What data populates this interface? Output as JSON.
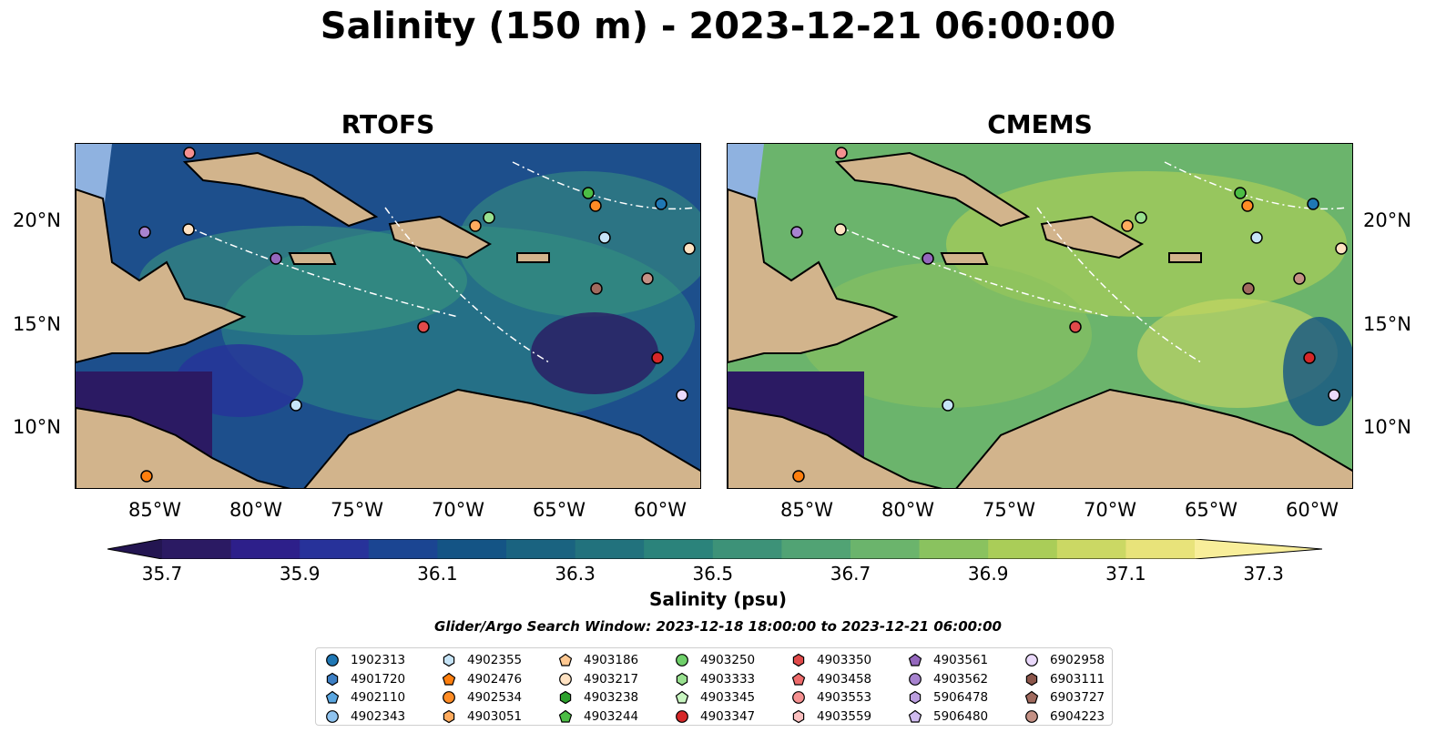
{
  "title": "Salinity (150 m) - 2023-12-21 06:00:00",
  "panels": [
    {
      "id": "rtofs",
      "title": "RTOFS"
    },
    {
      "id": "cmems",
      "title": "CMEMS"
    }
  ],
  "lon_ticks": [
    "85°W",
    "80°W",
    "75°W",
    "70°W",
    "65°W",
    "60°W"
  ],
  "lat_ticks": [
    "20°N",
    "15°N",
    "10°N"
  ],
  "colorbar": {
    "label": "Salinity (psu)",
    "ticks": [
      "35.7",
      "35.9",
      "36.1",
      "36.3",
      "36.5",
      "36.7",
      "36.9",
      "37.1",
      "37.3"
    ],
    "colors": [
      "#2b1a63",
      "#2d1f8a",
      "#27329a",
      "#1b4592",
      "#145485",
      "#1a6380",
      "#22727d",
      "#2b837b",
      "#3d9278",
      "#51a374",
      "#6bb46c",
      "#8ac25f",
      "#aacd58",
      "#cbd864",
      "#e8e37a"
    ]
  },
  "search_window": "Glider/Argo Search Window: 2023-12-18 18:00:00 to 2023-12-21 06:00:00",
  "legend": [
    {
      "id": "1902313",
      "marker": "circle",
      "color": "#1f77b4"
    },
    {
      "id": "4901720",
      "marker": "hexagon",
      "color": "#3d7fc4"
    },
    {
      "id": "4902110",
      "marker": "pentagon",
      "color": "#5aa6e0"
    },
    {
      "id": "4902343",
      "marker": "circle",
      "color": "#8fc3ef"
    },
    {
      "id": "4902355",
      "marker": "hexagon",
      "color": "#c6e4f7"
    },
    {
      "id": "4902476",
      "marker": "pentagon",
      "color": "#ff7f0e"
    },
    {
      "id": "4902534",
      "marker": "circle",
      "color": "#ff8c25"
    },
    {
      "id": "4903051",
      "marker": "hexagon",
      "color": "#ffab5e"
    },
    {
      "id": "4903186",
      "marker": "pentagon",
      "color": "#ffc891"
    },
    {
      "id": "4903217",
      "marker": "circle",
      "color": "#ffe2c2"
    },
    {
      "id": "4903238",
      "marker": "hexagon",
      "color": "#2ca02c"
    },
    {
      "id": "4903244",
      "marker": "pentagon",
      "color": "#4cbd45"
    },
    {
      "id": "4903250",
      "marker": "circle",
      "color": "#6fd06a"
    },
    {
      "id": "4903333",
      "marker": "hexagon",
      "color": "#98e08f"
    },
    {
      "id": "4903345",
      "marker": "pentagon",
      "color": "#c8f5c0"
    },
    {
      "id": "4903347",
      "marker": "circle",
      "color": "#d62728"
    },
    {
      "id": "4903350",
      "marker": "hexagon",
      "color": "#e04a4a"
    },
    {
      "id": "4903458",
      "marker": "pentagon",
      "color": "#ee6b6b"
    },
    {
      "id": "4903553",
      "marker": "circle",
      "color": "#f59090"
    },
    {
      "id": "4903559",
      "marker": "hexagon",
      "color": "#fbc0c0"
    },
    {
      "id": "4903561",
      "marker": "pentagon",
      "color": "#9467bd"
    },
    {
      "id": "4903562",
      "marker": "circle",
      "color": "#a783cf"
    },
    {
      "id": "5906478",
      "marker": "hexagon",
      "color": "#bc9fe0"
    },
    {
      "id": "5906480",
      "marker": "pentagon",
      "color": "#d0bbef"
    },
    {
      "id": "6902958",
      "marker": "circle",
      "color": "#ead9fb"
    },
    {
      "id": "6903111",
      "marker": "hexagon",
      "color": "#8c564b"
    },
    {
      "id": "6903727",
      "marker": "pentagon",
      "color": "#a06a5e"
    },
    {
      "id": "6904223",
      "marker": "circle",
      "color": "#c49185"
    }
  ]
}
